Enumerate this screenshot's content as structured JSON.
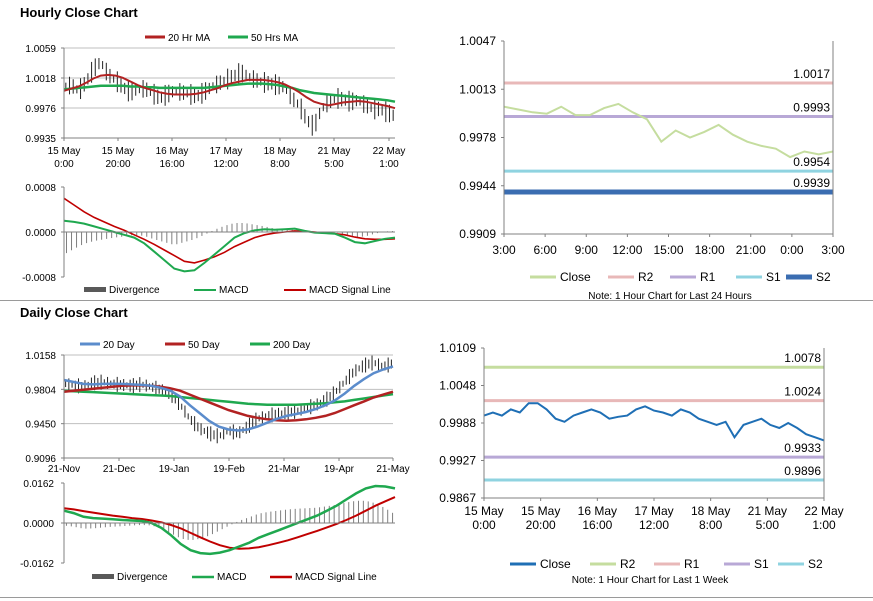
{
  "sections": {
    "hourly_title": "Hourly Close Chart",
    "daily_title": "Daily Close Chart"
  },
  "colors": {
    "ma20": "#b22222",
    "ma50": "#1fa84f",
    "blue_ma": "#5b8ccc",
    "close_line": "#1f6fb5",
    "close_light": "#c5dd9f",
    "r2_hourly": "#e8b8b8",
    "r1_hourly": "#b8a8d6",
    "s1_hourly": "#8fd3e0",
    "s2_hourly": "#3b6db1",
    "r2_daily": "#c5dd9f",
    "r1_daily": "#e8b8b8",
    "s1_daily": "#b8a8d6",
    "s2_daily": "#8fd3e0",
    "divergence": "#7f7f7f",
    "macd": "#1fa84f",
    "signal": "#c00000"
  },
  "chart_data": [
    {
      "id": "hourly_price",
      "type": "line",
      "legend": [
        "20 Hr MA",
        "50 Hrs MA"
      ],
      "y_ticks": [
        "1.0059",
        "1.0018",
        "0.9976",
        "0.9935"
      ],
      "ylim": [
        0.9935,
        1.0059
      ],
      "x_ticks": [
        [
          "15 May",
          "0:00"
        ],
        [
          "15 May",
          "20:00"
        ],
        [
          "16 May",
          "16:00"
        ],
        [
          "17 May",
          "12:00"
        ],
        [
          "18 May",
          "8:00"
        ],
        [
          "21 May",
          "5:00"
        ],
        [
          "22 May",
          "1:00"
        ]
      ],
      "close": [
        1.0005,
        1.0008,
        1.0,
        1.0012,
        1.003,
        1.004,
        1.0022,
        1.0015,
        1.0005,
        0.9998,
        1.0002,
        1.0003,
        0.9997,
        0.999,
        0.9995,
        1.0,
        0.9998,
        0.9996,
        0.9992,
        0.9998,
        1.0005,
        1.001,
        1.0015,
        1.002,
        1.0025,
        1.002,
        1.0015,
        1.0012,
        1.001,
        1.0008,
        1.0005,
        0.999,
        0.998,
        0.996,
        0.995,
        0.9975,
        0.9985,
        0.999,
        0.9988,
        0.9985,
        0.9987,
        0.998,
        0.9975,
        0.9975,
        0.997,
        0.9965
      ],
      "ma20": [
        1.0,
        1.0003,
        1.0006,
        1.0011,
        1.0017,
        1.0021,
        1.0022,
        1.0021,
        1.0018,
        1.0013,
        1.0008,
        1.0004,
        1.0001,
        0.9998,
        0.9996,
        0.9995,
        0.9995,
        0.9995,
        0.9996,
        0.9998,
        1.0001,
        1.0004,
        1.0008,
        1.0011,
        1.0013,
        1.0015,
        1.0015,
        1.0015,
        1.0014,
        1.0012,
        1.0009,
        1.0004,
        0.9998,
        0.9991,
        0.9985,
        0.9982,
        0.998,
        0.9982,
        0.9984,
        0.9985,
        0.9986,
        0.9985,
        0.9983,
        0.9981,
        0.9979,
        0.9976
      ],
      "ma50": [
        1.0002,
        1.0003,
        1.0004,
        1.0005,
        1.0006,
        1.0007,
        1.0007,
        1.0007,
        1.0007,
        1.0006,
        1.0006,
        1.0005,
        1.0005,
        1.0004,
        1.0004,
        1.0004,
        1.0004,
        1.0004,
        1.0004,
        1.0004,
        1.0005,
        1.0006,
        1.0007,
        1.0008,
        1.0009,
        1.001,
        1.001,
        1.001,
        1.0009,
        1.0008,
        1.0006,
        1.0004,
        1.0001,
        0.9999,
        0.9997,
        0.9996,
        0.9995,
        0.9994,
        0.9993,
        0.9992,
        0.9991,
        0.999,
        0.9989,
        0.9988,
        0.9987,
        0.9985
      ]
    },
    {
      "id": "hourly_macd",
      "type": "bar",
      "y_ticks": [
        "0.0008",
        "0.0000",
        "-0.0008"
      ],
      "ylim": [
        -0.0008,
        0.0008
      ],
      "legend": [
        "Divergence",
        "MACD",
        "MACD Signal Line"
      ],
      "macd": [
        0.0002,
        0.00018,
        0.00015,
        0.0001,
        5e-05,
        0.0,
        -5e-05,
        -0.0001,
        -0.0002,
        -0.00035,
        -0.0005,
        -0.00065,
        -0.0007,
        -0.00068,
        -0.00055,
        -0.0004,
        -0.00025,
        -0.0001,
        -2e-05,
        3e-05,
        5e-05,
        4e-05,
        5e-05,
        6e-05,
        2e-05,
        -1e-05,
        -2e-05,
        -3e-05,
        -0.0001,
        -0.00018,
        -0.0002,
        -0.00016,
        -0.00012,
        -0.0001
      ],
      "signal": [
        0.0006,
        0.00048,
        0.00036,
        0.00026,
        0.00018,
        0.0001,
        3e-05,
        -5e-05,
        -0.00013,
        -0.00022,
        -0.00032,
        -0.00042,
        -0.00052,
        -0.00055,
        -0.0005,
        -0.00044,
        -0.00036,
        -0.00026,
        -0.00018,
        -0.0001,
        -5e-05,
        -2e-05,
        0.0,
        2e-05,
        1e-05,
        0.0,
        -2e-05,
        -3e-05,
        -5e-05,
        -9e-05,
        -0.00012,
        -0.00013,
        -0.00013,
        -0.00012
      ]
    },
    {
      "id": "hourly_levels",
      "type": "line",
      "y_ticks": [
        "1.0047",
        "1.0013",
        "0.9978",
        "0.9944",
        "0.9909"
      ],
      "ylim": [
        0.9909,
        1.0047
      ],
      "x_ticks": [
        "3:00",
        "6:00",
        "9:00",
        "12:00",
        "15:00",
        "18:00",
        "21:00",
        "0:00",
        "3:00"
      ],
      "close": [
        1.0,
        0.9998,
        0.9996,
        0.9995,
        1.0,
        0.9994,
        0.9994,
        0.9999,
        1.0002,
        0.9996,
        0.9991,
        0.9975,
        0.9983,
        0.9978,
        0.9982,
        0.9987,
        0.998,
        0.9975,
        0.9972,
        0.997,
        0.9964,
        0.9968,
        0.9966,
        0.9968
      ],
      "levels": [
        {
          "name": "R2",
          "value": 1.0017,
          "label": "1.0017"
        },
        {
          "name": "R1",
          "value": 0.9993,
          "label": "0.9993"
        },
        {
          "name": "S1",
          "value": 0.9954,
          "label": "0.9954"
        },
        {
          "name": "S2",
          "value": 0.9939,
          "label": "0.9939"
        }
      ],
      "legend": [
        "Close",
        "R2",
        "R1",
        "S1",
        "S2"
      ],
      "note": "Note: 1 Hour Chart for Last 24 Hours"
    },
    {
      "id": "daily_price",
      "type": "line",
      "legend": [
        "20 Day",
        "50 Day",
        "200 Day"
      ],
      "y_ticks": [
        "1.0158",
        "0.9804",
        "0.9450",
        "0.9096"
      ],
      "ylim": [
        0.9096,
        1.0158
      ],
      "x_ticks": [
        "21-Nov",
        "21-Dec",
        "19-Jan",
        "19-Feb",
        "21-Mar",
        "19-Apr",
        "21-May"
      ],
      "close": [
        0.986,
        0.985,
        0.983,
        0.987,
        0.988,
        0.986,
        0.985,
        0.984,
        0.9855,
        0.983,
        0.98,
        0.976,
        0.965,
        0.95,
        0.94,
        0.935,
        0.932,
        0.938,
        0.935,
        0.942,
        0.95,
        0.953,
        0.955,
        0.956,
        0.958,
        0.961,
        0.964,
        0.969,
        0.977,
        0.988,
        0.999,
        1.005,
        1.008,
        1.004,
        1.007
      ],
      "ma20": [
        0.99,
        0.988,
        0.986,
        0.9855,
        0.986,
        0.9862,
        0.986,
        0.9855,
        0.985,
        0.984,
        0.982,
        0.979,
        0.973,
        0.964,
        0.956,
        0.948,
        0.942,
        0.939,
        0.938,
        0.939,
        0.942,
        0.946,
        0.95,
        0.953,
        0.955,
        0.957,
        0.96,
        0.964,
        0.969,
        0.976,
        0.984,
        0.991,
        0.997,
        1.001,
        1.004
      ],
      "ma50": [
        0.978,
        0.979,
        0.98,
        0.981,
        0.982,
        0.983,
        0.984,
        0.9845,
        0.9845,
        0.984,
        0.983,
        0.9815,
        0.979,
        0.975,
        0.971,
        0.967,
        0.963,
        0.959,
        0.956,
        0.953,
        0.951,
        0.9495,
        0.9485,
        0.948,
        0.9485,
        0.9495,
        0.951,
        0.953,
        0.956,
        0.96,
        0.964,
        0.968,
        0.972,
        0.975,
        0.978
      ],
      "ma200": [
        0.979,
        0.9785,
        0.978,
        0.9775,
        0.977,
        0.9765,
        0.976,
        0.9755,
        0.975,
        0.9745,
        0.974,
        0.9735,
        0.9725,
        0.9715,
        0.9705,
        0.9695,
        0.9685,
        0.9675,
        0.9665,
        0.9655,
        0.965,
        0.9645,
        0.9645,
        0.9645,
        0.9645,
        0.965,
        0.9655,
        0.966,
        0.967,
        0.968,
        0.9695,
        0.971,
        0.9725,
        0.974,
        0.9755
      ]
    },
    {
      "id": "daily_macd",
      "type": "bar",
      "y_ticks": [
        "0.0162",
        "0.0000",
        "-0.0162"
      ],
      "ylim": [
        -0.0162,
        0.0162
      ],
      "legend": [
        "Divergence",
        "MACD",
        "MACD Signal Line"
      ],
      "macd": [
        0.005,
        0.004,
        0.0025,
        0.002,
        0.0018,
        0.0015,
        0.0012,
        0.001,
        0.0008,
        0.0,
        -0.002,
        -0.005,
        -0.0085,
        -0.011,
        -0.0122,
        -0.0125,
        -0.012,
        -0.011,
        -0.0095,
        -0.008,
        -0.006,
        -0.0045,
        -0.003,
        -0.0015,
        0.0,
        0.0015,
        0.003,
        0.005,
        0.007,
        0.0095,
        0.012,
        0.014,
        0.015,
        0.0148,
        0.014
      ],
      "signal": [
        0.006,
        0.0055,
        0.0048,
        0.0042,
        0.0036,
        0.003,
        0.0025,
        0.002,
        0.0016,
        0.001,
        0.0003,
        -0.0008,
        -0.0022,
        -0.004,
        -0.0058,
        -0.0075,
        -0.009,
        -0.01,
        -0.0104,
        -0.0103,
        -0.0098,
        -0.009,
        -0.008,
        -0.007,
        -0.0058,
        -0.0045,
        -0.0032,
        -0.0018,
        -0.0004,
        0.0012,
        0.003,
        0.005,
        0.007,
        0.0088,
        0.0105
      ]
    },
    {
      "id": "daily_levels",
      "type": "line",
      "y_ticks": [
        "1.0109",
        "1.0048",
        "0.9988",
        "0.9927",
        "0.9867"
      ],
      "ylim": [
        0.9867,
        1.0109
      ],
      "x_ticks": [
        [
          "15 May",
          "0:00"
        ],
        [
          "15 May",
          "20:00"
        ],
        [
          "16 May",
          "16:00"
        ],
        [
          "17 May",
          "12:00"
        ],
        [
          "18 May",
          "8:00"
        ],
        [
          "21 May",
          "5:00"
        ],
        [
          "22 May",
          "1:00"
        ]
      ],
      "close": [
        1.0,
        1.0005,
        1.0,
        1.001,
        1.0005,
        1.002,
        1.002,
        1.001,
        0.9995,
        0.999,
        1.0,
        1.0005,
        1.001,
        1.0005,
        0.9995,
        0.9998,
        1.0,
        1.001,
        1.0015,
        1.0008,
        1.0005,
        1.0,
        1.001,
        1.0005,
        0.9995,
        0.999,
        0.9985,
        0.999,
        0.9965,
        0.9985,
        0.999,
        0.9995,
        0.9985,
        0.998,
        0.9988,
        0.998,
        0.997,
        0.9965,
        0.996
      ],
      "levels": [
        {
          "name": "R2",
          "value": 1.0078,
          "label": "1.0078"
        },
        {
          "name": "R1",
          "value": 1.0024,
          "label": "1.0024"
        },
        {
          "name": "S1",
          "value": 0.9933,
          "label": "0.9933"
        },
        {
          "name": "S2",
          "value": 0.9896,
          "label": "0.9896"
        }
      ],
      "legend": [
        "Close",
        "R2",
        "R1",
        "S1",
        "S2"
      ],
      "note": "Note: 1 Hour Chart for Last 1 Week"
    }
  ]
}
